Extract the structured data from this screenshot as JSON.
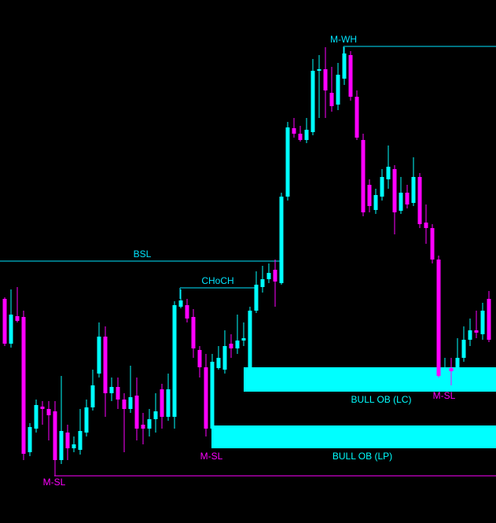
{
  "chart_data": {
    "type": "candlestick",
    "ylim": [
      0,
      665
    ],
    "bull_color": "#00ffff",
    "bear_color": "#ff00ff",
    "ohlc": [
      [
        285,
        287,
        225,
        228
      ],
      [
        228,
        297,
        223,
        265
      ],
      [
        263,
        300,
        255,
        257
      ],
      [
        262,
        270,
        80,
        88
      ],
      [
        90,
        127,
        85,
        122
      ],
      [
        120,
        157,
        115,
        150
      ],
      [
        148,
        155,
        125,
        145
      ],
      [
        145,
        155,
        105,
        137
      ],
      [
        142,
        155,
        60,
        80
      ],
      [
        80,
        187,
        75,
        117
      ],
      [
        115,
        125,
        80,
        95
      ],
      [
        95,
        110,
        90,
        100
      ],
      [
        93,
        145,
        87,
        117
      ],
      [
        115,
        157,
        110,
        147
      ],
      [
        147,
        195,
        143,
        175
      ],
      [
        190,
        255,
        185,
        237
      ],
      [
        237,
        250,
        135,
        165
      ],
      [
        165,
        185,
        155,
        173
      ],
      [
        173,
        185,
        145,
        157
      ],
      [
        157,
        165,
        90,
        145
      ],
      [
        145,
        200,
        140,
        160
      ],
      [
        162,
        185,
        105,
        120
      ],
      [
        125,
        140,
        100,
        120
      ],
      [
        120,
        145,
        110,
        132
      ],
      [
        132,
        165,
        115,
        142
      ],
      [
        170,
        177,
        120,
        135
      ],
      [
        135,
        190,
        130,
        170
      ],
      [
        135,
        282,
        120,
        277
      ],
      [
        275,
        297,
        273,
        283
      ],
      [
        277,
        285,
        255,
        260
      ],
      [
        262,
        272,
        210,
        222
      ],
      [
        220,
        225,
        185,
        198
      ],
      [
        198,
        215,
        110,
        120
      ],
      [
        120,
        215,
        117,
        205
      ],
      [
        197,
        225,
        195,
        210
      ],
      [
        195,
        245,
        190,
        225
      ],
      [
        228,
        240,
        210,
        222
      ],
      [
        222,
        265,
        215,
        232
      ],
      [
        232,
        255,
        225,
        235
      ],
      [
        197,
        275,
        185,
        270
      ],
      [
        270,
        320,
        267,
        303
      ],
      [
        300,
        327,
        293,
        310
      ],
      [
        310,
        330,
        305,
        318
      ],
      [
        322,
        335,
        275,
        307
      ],
      [
        305,
        420,
        303,
        415
      ],
      [
        415,
        510,
        410,
        503
      ],
      [
        502,
        515,
        490,
        495
      ],
      [
        495,
        505,
        485,
        487
      ],
      [
        487,
        515,
        483,
        500
      ],
      [
        497,
        590,
        493,
        575
      ],
      [
        575,
        595,
        515,
        577
      ],
      [
        577,
        605,
        515,
        550
      ],
      [
        547,
        580,
        523,
        530
      ],
      [
        532,
        585,
        525,
        570
      ],
      [
        565,
        605,
        557,
        597
      ],
      [
        595,
        600,
        537,
        542
      ],
      [
        542,
        550,
        487,
        490
      ],
      [
        487,
        495,
        390,
        395
      ],
      [
        430,
        437,
        395,
        403
      ],
      [
        398,
        425,
        393,
        417
      ],
      [
        415,
        450,
        410,
        440
      ],
      [
        437,
        480,
        425,
        453
      ],
      [
        450,
        455,
        367,
        395
      ],
      [
        397,
        440,
        393,
        420
      ],
      [
        420,
        430,
        400,
        405
      ],
      [
        407,
        465,
        403,
        440
      ],
      [
        440,
        445,
        375,
        380
      ],
      [
        382,
        405,
        355,
        375
      ],
      [
        375,
        380,
        330,
        335
      ],
      [
        335,
        340,
        185,
        187
      ],
      [
        187,
        210,
        185,
        197
      ],
      [
        197,
        210,
        175,
        193
      ],
      [
        193,
        235,
        187,
        210
      ],
      [
        210,
        250,
        205,
        233
      ],
      [
        233,
        260,
        225,
        245
      ],
      [
        245,
        270,
        235,
        242
      ],
      [
        240,
        280,
        233,
        270
      ],
      [
        285,
        295,
        230,
        233
      ]
    ],
    "levels": [
      {
        "name": "BSL",
        "value": 333,
        "color": "#00e5ff"
      },
      {
        "name": "CHoCH",
        "value": 299,
        "color": "#00e5ff"
      },
      {
        "name": "M-WH",
        "value": 606,
        "color": "#00e5ff"
      },
      {
        "name": "M-SL",
        "value": 60,
        "color": "#ff00ff"
      }
    ],
    "zones": [
      {
        "name": "BULL OB (LC)",
        "top": 198,
        "bottom": 167,
        "color": "#00ffff"
      },
      {
        "name": "BULL OB (LP)",
        "top": 124,
        "bottom": 95,
        "color": "#00ffff"
      }
    ],
    "swing_labels": [
      {
        "text": "M-SL",
        "color": "#ff00ff"
      },
      {
        "text": "M-SL",
        "color": "#ff00ff"
      }
    ]
  }
}
